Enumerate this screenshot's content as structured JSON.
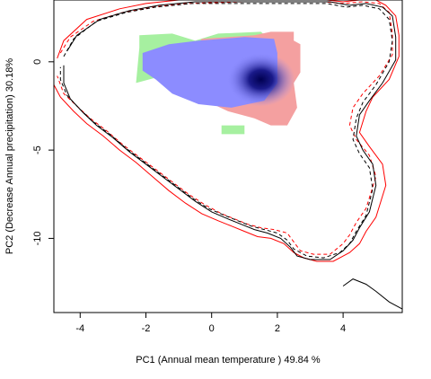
{
  "chart_data": {
    "type": "scatter",
    "xlabel": "PC1 (Annual mean temperature ) 49.84 %",
    "ylabel": "PC2 (Decrease Annual precipitation) 30.18%",
    "xlim": [
      -4.8,
      5.8
    ],
    "ylim": [
      -14.2,
      3.5
    ],
    "x_ticks": [
      -4,
      -2,
      0,
      2,
      4
    ],
    "y_ticks": [
      0,
      -5,
      -10
    ],
    "x_tick_labels": [
      "-4",
      "-2",
      "0",
      "2",
      "4"
    ],
    "y_tick_labels": [
      "0",
      "-5",
      "-10"
    ],
    "grid": false,
    "colors": {
      "blue_density": "#8c8cff",
      "blue_core": "#0a0a6a",
      "red_region": "#f4a0a0",
      "green_region": "#a6f0a0",
      "contour_red": "#ff0000",
      "contour_black": "#000000"
    },
    "regions": [
      {
        "color": "green_region",
        "points": [
          [
            -2.2,
            1.5
          ],
          [
            -1.2,
            1.6
          ],
          [
            -0.5,
            1.2
          ],
          [
            0.2,
            1.6
          ],
          [
            1.5,
            1.7
          ],
          [
            1.8,
            1.2
          ],
          [
            0.5,
            -2.4
          ],
          [
            -1.5,
            -0.8
          ],
          [
            -2.3,
            -1.2
          ],
          [
            -2.2,
            0.8
          ]
        ]
      },
      {
        "color": "green_region",
        "points": [
          [
            0.3,
            -3.6
          ],
          [
            1.0,
            -3.6
          ],
          [
            1.0,
            -4.1
          ],
          [
            0.3,
            -4.1
          ]
        ]
      },
      {
        "color": "red_region",
        "points": [
          [
            -0.3,
            1.3
          ],
          [
            1.3,
            1.5
          ],
          [
            1.8,
            1.7
          ],
          [
            2.5,
            1.7
          ],
          [
            2.5,
            1.2
          ],
          [
            2.7,
            1.0
          ],
          [
            2.7,
            -0.6
          ],
          [
            2.5,
            -1.2
          ],
          [
            2.6,
            -2.6
          ],
          [
            2.3,
            -3.6
          ],
          [
            1.8,
            -3.6
          ],
          [
            1.3,
            -3.2
          ],
          [
            0.5,
            -2.8
          ],
          [
            -1.0,
            -1.5
          ],
          [
            -0.6,
            0.4
          ]
        ]
      },
      {
        "color": "blue_density",
        "points": [
          [
            -2.1,
            0.5
          ],
          [
            -1.3,
            1.0
          ],
          [
            -0.4,
            1.2
          ],
          [
            1.0,
            1.4
          ],
          [
            1.9,
            1.3
          ],
          [
            2.0,
            0.5
          ],
          [
            2.0,
            -1.2
          ],
          [
            1.6,
            -2.2
          ],
          [
            0.6,
            -2.6
          ],
          [
            -0.4,
            -2.4
          ],
          [
            -1.2,
            -1.8
          ],
          [
            -1.7,
            -1.0
          ],
          [
            -2.1,
            -0.5
          ]
        ]
      }
    ],
    "density_center": [
      1.5,
      -1.0
    ],
    "contours": [
      {
        "color": "contour_red",
        "dash": "solid",
        "points": [
          [
            -4.7,
            0.2
          ],
          [
            -4.5,
            1.2
          ],
          [
            -3.8,
            2.4
          ],
          [
            -2.8,
            3.0
          ],
          [
            -2.0,
            3.3
          ],
          [
            -1.0,
            3.5
          ],
          [
            1.0,
            3.5
          ],
          [
            3.5,
            3.5
          ],
          [
            4.0,
            3.4
          ],
          [
            4.5,
            3.5
          ],
          [
            5.0,
            3.5
          ],
          [
            5.3,
            3.2
          ],
          [
            5.6,
            2.6
          ],
          [
            5.7,
            1.5
          ],
          [
            5.7,
            0.3
          ],
          [
            5.4,
            -1.0
          ],
          [
            4.9,
            -2.0
          ],
          [
            4.7,
            -2.8
          ],
          [
            4.5,
            -4.0
          ],
          [
            4.8,
            -4.8
          ],
          [
            5.2,
            -5.8
          ],
          [
            5.3,
            -7.0
          ],
          [
            5.0,
            -8.8
          ],
          [
            4.7,
            -9.6
          ],
          [
            4.5,
            -10.3
          ],
          [
            4.2,
            -10.8
          ],
          [
            3.7,
            -11.3
          ],
          [
            3.2,
            -11.3
          ],
          [
            2.8,
            -11.1
          ],
          [
            2.5,
            -10.8
          ],
          [
            2.2,
            -10.3
          ],
          [
            1.8,
            -10.0
          ],
          [
            1.4,
            -9.9
          ],
          [
            1.0,
            -9.6
          ],
          [
            0.6,
            -9.3
          ],
          [
            0.2,
            -9.0
          ],
          [
            -0.3,
            -8.6
          ],
          [
            -0.8,
            -8.0
          ],
          [
            -1.3,
            -7.3
          ],
          [
            -1.8,
            -6.5
          ],
          [
            -2.3,
            -5.7
          ],
          [
            -2.8,
            -5.0
          ],
          [
            -3.3,
            -4.2
          ],
          [
            -3.8,
            -3.5
          ],
          [
            -4.2,
            -2.8
          ],
          [
            -4.6,
            -2.0
          ],
          [
            -4.8,
            -1.3
          ]
        ]
      },
      {
        "color": "contour_red",
        "dash": "dashed",
        "points": [
          [
            -4.6,
            0.5
          ],
          [
            -4.3,
            1.4
          ],
          [
            -3.6,
            2.3
          ],
          [
            -2.7,
            2.8
          ],
          [
            -1.8,
            3.1
          ],
          [
            -0.8,
            3.3
          ],
          [
            1.0,
            3.4
          ],
          [
            3.4,
            3.4
          ],
          [
            4.0,
            3.3
          ],
          [
            4.6,
            3.4
          ],
          [
            5.1,
            3.3
          ],
          [
            5.4,
            2.8
          ],
          [
            5.5,
            1.6
          ],
          [
            5.5,
            0.4
          ],
          [
            5.1,
            -0.8
          ],
          [
            4.6,
            -1.8
          ],
          [
            4.3,
            -2.6
          ],
          [
            4.2,
            -3.6
          ],
          [
            4.4,
            -4.4
          ],
          [
            4.8,
            -5.3
          ],
          [
            5.0,
            -6.5
          ],
          [
            4.7,
            -8.3
          ],
          [
            4.4,
            -9.1
          ],
          [
            4.2,
            -9.8
          ],
          [
            4.0,
            -10.3
          ],
          [
            3.6,
            -10.9
          ],
          [
            3.1,
            -10.9
          ],
          [
            2.7,
            -10.7
          ],
          [
            2.5,
            -10.2
          ],
          [
            2.3,
            -9.7
          ],
          [
            1.9,
            -9.5
          ],
          [
            1.5,
            -9.4
          ],
          [
            1.1,
            -9.2
          ],
          [
            0.7,
            -8.9
          ],
          [
            0.3,
            -8.6
          ],
          [
            -0.2,
            -8.1
          ],
          [
            -0.7,
            -7.5
          ],
          [
            -1.2,
            -6.8
          ],
          [
            -1.7,
            -6.1
          ],
          [
            -2.2,
            -5.4
          ],
          [
            -2.7,
            -4.7
          ],
          [
            -3.2,
            -3.9
          ],
          [
            -3.7,
            -3.2
          ],
          [
            -4.1,
            -2.5
          ],
          [
            -4.5,
            -1.8
          ],
          [
            -4.7,
            -0.8
          ]
        ]
      },
      {
        "color": "contour_black",
        "dash": "solid",
        "points": [
          [
            -4.4,
            0.6
          ],
          [
            -4.1,
            1.5
          ],
          [
            -3.4,
            2.4
          ],
          [
            -2.5,
            2.9
          ],
          [
            -1.6,
            3.2
          ],
          [
            -0.5,
            3.4
          ],
          [
            1.2,
            3.4
          ],
          [
            3.6,
            3.4
          ],
          [
            4.2,
            3.2
          ],
          [
            4.7,
            3.3
          ],
          [
            5.2,
            3.1
          ],
          [
            5.5,
            2.6
          ],
          [
            5.6,
            1.4
          ],
          [
            5.6,
            0.1
          ],
          [
            5.2,
            -1.2
          ],
          [
            4.8,
            -2.2
          ],
          [
            4.5,
            -3.0
          ],
          [
            4.4,
            -4.2
          ],
          [
            4.6,
            -5.0
          ],
          [
            4.9,
            -5.8
          ],
          [
            5.0,
            -7.0
          ],
          [
            4.8,
            -8.5
          ],
          [
            4.5,
            -9.4
          ],
          [
            4.3,
            -10.1
          ],
          [
            4.0,
            -10.7
          ],
          [
            3.6,
            -11.2
          ],
          [
            3.0,
            -11.2
          ],
          [
            2.6,
            -11.0
          ],
          [
            2.4,
            -10.5
          ],
          [
            2.1,
            -10.0
          ],
          [
            1.7,
            -9.7
          ],
          [
            1.3,
            -9.5
          ],
          [
            0.9,
            -9.2
          ],
          [
            0.5,
            -8.9
          ],
          [
            0.0,
            -8.5
          ],
          [
            -0.5,
            -7.9
          ],
          [
            -1.0,
            -7.2
          ],
          [
            -1.5,
            -6.5
          ],
          [
            -2.0,
            -5.8
          ],
          [
            -2.5,
            -5.1
          ],
          [
            -3.0,
            -4.3
          ],
          [
            -3.5,
            -3.6
          ],
          [
            -3.9,
            -2.9
          ],
          [
            -4.3,
            -2.1
          ],
          [
            -4.5,
            -1.2
          ],
          [
            -4.5,
            -0.2
          ]
        ]
      },
      {
        "color": "contour_black",
        "dash": "dashed",
        "points": [
          [
            -4.5,
            0.3
          ],
          [
            -4.2,
            1.3
          ],
          [
            -3.5,
            2.3
          ],
          [
            -2.6,
            2.8
          ],
          [
            -1.7,
            3.1
          ],
          [
            -0.6,
            3.3
          ],
          [
            1.1,
            3.3
          ],
          [
            3.5,
            3.3
          ],
          [
            4.1,
            3.1
          ],
          [
            4.6,
            3.2
          ],
          [
            5.1,
            3.0
          ],
          [
            5.4,
            2.4
          ],
          [
            5.5,
            1.2
          ],
          [
            5.4,
            0.0
          ],
          [
            5.0,
            -1.3
          ],
          [
            4.6,
            -2.3
          ],
          [
            4.4,
            -3.2
          ],
          [
            4.3,
            -4.4
          ],
          [
            4.5,
            -5.2
          ],
          [
            4.8,
            -6.0
          ],
          [
            4.9,
            -7.2
          ],
          [
            4.7,
            -8.7
          ],
          [
            4.4,
            -9.6
          ],
          [
            4.2,
            -10.3
          ],
          [
            3.9,
            -10.8
          ],
          [
            3.4,
            -11.1
          ],
          [
            2.9,
            -11.0
          ],
          [
            2.5,
            -10.6
          ],
          [
            2.3,
            -10.1
          ],
          [
            2.0,
            -9.7
          ],
          [
            1.6,
            -9.5
          ],
          [
            1.2,
            -9.3
          ],
          [
            0.8,
            -9.0
          ],
          [
            0.4,
            -8.7
          ],
          [
            -0.1,
            -8.3
          ],
          [
            -0.6,
            -7.7
          ],
          [
            -1.1,
            -7.0
          ],
          [
            -1.6,
            -6.3
          ],
          [
            -2.1,
            -5.6
          ],
          [
            -2.6,
            -4.9
          ],
          [
            -3.1,
            -4.1
          ],
          [
            -3.6,
            -3.4
          ],
          [
            -4.0,
            -2.7
          ],
          [
            -4.4,
            -1.9
          ],
          [
            -4.6,
            -1.0
          ],
          [
            -4.6,
            -0.3
          ]
        ]
      },
      {
        "color": "contour_black",
        "dash": "solid",
        "points": [
          [
            4.0,
            -12.7
          ],
          [
            4.3,
            -12.3
          ],
          [
            4.7,
            -12.6
          ],
          [
            5.0,
            -13.0
          ],
          [
            5.4,
            -13.6
          ],
          [
            5.8,
            -14.0
          ]
        ]
      }
    ]
  }
}
